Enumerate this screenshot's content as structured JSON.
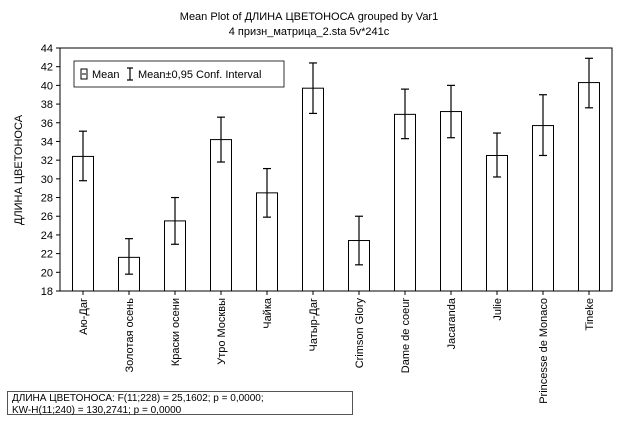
{
  "chart_data": {
    "type": "bar",
    "title": "Mean Plot of ДЛИНА ЦВЕТОНОСА grouped by Var1",
    "subtitle": "4 призн_матрица_2.sta 5v*241c",
    "ylabel": "ДЛИНА ЦВЕТОНОСА",
    "xlabel": "",
    "ylim": [
      18,
      44
    ],
    "yticks": [
      18,
      20,
      22,
      24,
      26,
      28,
      30,
      32,
      34,
      36,
      38,
      40,
      42,
      44
    ],
    "grid": false,
    "legend_position": "top-left",
    "legend": {
      "mean_label": "Mean",
      "ci_label": "Mean±0,95 Conf. Interval"
    },
    "categories": [
      "Аю-Даг",
      "Золотая осень",
      "Краски осени",
      "Утро Москвы",
      "Чайка",
      "Чатыр-Даг",
      "Crimson Glory",
      "Dame de coeur",
      "Jacaranda",
      "Julie",
      "Princesse de Monaco",
      "Tineke"
    ],
    "series": [
      {
        "name": "Mean",
        "values": [
          32.4,
          21.6,
          25.5,
          34.2,
          28.5,
          39.7,
          23.4,
          36.9,
          37.2,
          32.5,
          35.7,
          40.3
        ],
        "ci_low": [
          29.8,
          19.8,
          23.0,
          31.8,
          25.9,
          37.0,
          20.8,
          34.3,
          34.4,
          30.2,
          32.5,
          37.6
        ],
        "ci_high": [
          35.1,
          23.6,
          28.0,
          36.6,
          31.1,
          42.4,
          26.0,
          39.6,
          40.0,
          34.9,
          39.0,
          42.9
        ]
      }
    ]
  },
  "stats": {
    "line1": "ДЛИНА ЦВЕТОНОСА:  F(11;228) = 25,1602; p = 0,0000;",
    "line2": "KW-H(11;240) = 130,2741; p = 0,0000"
  },
  "colors": {
    "bar_fill": "#ffffff",
    "bar_stroke": "#000000",
    "axis": "#000000"
  }
}
